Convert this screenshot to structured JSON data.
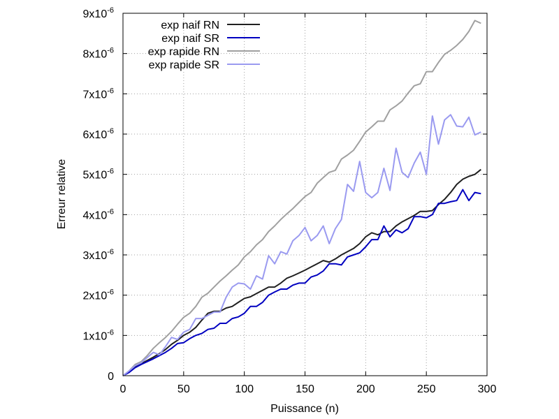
{
  "chart_data": {
    "type": "line",
    "title": "",
    "xlabel": "Puissance (n)",
    "ylabel": "Erreur relative",
    "xlim": [
      0,
      300
    ],
    "ylim": [
      0,
      9e-06
    ],
    "x_ticks": [
      0,
      50,
      100,
      150,
      200,
      250,
      300
    ],
    "y_ticks": [
      0,
      1e-06,
      2e-06,
      3e-06,
      4e-06,
      5e-06,
      6e-06,
      7e-06,
      8e-06,
      9e-06
    ],
    "x_tick_labels": [
      "0",
      "50",
      "100",
      "150",
      "200",
      "250",
      "300"
    ],
    "y_tick_labels": [
      {
        "mantissa": "0",
        "exponent": ""
      },
      {
        "mantissa": "1x10",
        "exponent": "-6"
      },
      {
        "mantissa": "2x10",
        "exponent": "-6"
      },
      {
        "mantissa": "3x10",
        "exponent": "-6"
      },
      {
        "mantissa": "4x10",
        "exponent": "-6"
      },
      {
        "mantissa": "5x10",
        "exponent": "-6"
      },
      {
        "mantissa": "6x10",
        "exponent": "-6"
      },
      {
        "mantissa": "7x10",
        "exponent": "-6"
      },
      {
        "mantissa": "8x10",
        "exponent": "-6"
      },
      {
        "mantissa": "9x10",
        "exponent": "-6"
      }
    ],
    "grid": true,
    "legend_position": "top-left",
    "series": [
      {
        "name": "exp naif RN",
        "color": "#202020",
        "points": [
          [
            0,
            0
          ],
          [
            5,
            1e-07
          ],
          [
            10,
            2.2e-07
          ],
          [
            15,
            3e-07
          ],
          [
            20,
            3.8e-07
          ],
          [
            25,
            4.6e-07
          ],
          [
            30,
            5.5e-07
          ],
          [
            35,
            6.5e-07
          ],
          [
            40,
            7.8e-07
          ],
          [
            45,
            8.8e-07
          ],
          [
            50,
            1e-06
          ],
          [
            55,
            1.08e-06
          ],
          [
            60,
            1.2e-06
          ],
          [
            65,
            1.38e-06
          ],
          [
            70,
            1.55e-06
          ],
          [
            75,
            1.6e-06
          ],
          [
            80,
            1.6e-06
          ],
          [
            85,
            1.68e-06
          ],
          [
            90,
            1.72e-06
          ],
          [
            95,
            1.82e-06
          ],
          [
            100,
            1.92e-06
          ],
          [
            105,
            1.96e-06
          ],
          [
            110,
            2.04e-06
          ],
          [
            115,
            2.12e-06
          ],
          [
            120,
            2.2e-06
          ],
          [
            125,
            2.2e-06
          ],
          [
            130,
            2.3e-06
          ],
          [
            135,
            2.42e-06
          ],
          [
            140,
            2.48e-06
          ],
          [
            145,
            2.55e-06
          ],
          [
            150,
            2.62e-06
          ],
          [
            155,
            2.7e-06
          ],
          [
            160,
            2.78e-06
          ],
          [
            165,
            2.86e-06
          ],
          [
            170,
            2.82e-06
          ],
          [
            175,
            2.9e-06
          ],
          [
            180,
            3e-06
          ],
          [
            185,
            3.08e-06
          ],
          [
            190,
            3.16e-06
          ],
          [
            195,
            3.28e-06
          ],
          [
            200,
            3.45e-06
          ],
          [
            205,
            3.55e-06
          ],
          [
            210,
            3.5e-06
          ],
          [
            215,
            3.58e-06
          ],
          [
            220,
            3.58e-06
          ],
          [
            225,
            3.72e-06
          ],
          [
            230,
            3.82e-06
          ],
          [
            235,
            3.9e-06
          ],
          [
            240,
            3.98e-06
          ],
          [
            245,
            4.08e-06
          ],
          [
            250,
            4.08e-06
          ],
          [
            255,
            4.1e-06
          ],
          [
            260,
            4.25e-06
          ],
          [
            265,
            4.38e-06
          ],
          [
            270,
            4.55e-06
          ],
          [
            275,
            4.75e-06
          ],
          [
            280,
            4.88e-06
          ],
          [
            285,
            4.95e-06
          ],
          [
            290,
            5e-06
          ],
          [
            295,
            5.12e-06
          ]
        ]
      },
      {
        "name": "exp naif SR",
        "color": "#0000c0",
        "points": [
          [
            0,
            0
          ],
          [
            5,
            8e-08
          ],
          [
            10,
            2e-07
          ],
          [
            15,
            2.8e-07
          ],
          [
            20,
            3.5e-07
          ],
          [
            25,
            4.2e-07
          ],
          [
            30,
            5e-07
          ],
          [
            35,
            5.8e-07
          ],
          [
            40,
            6.8e-07
          ],
          [
            45,
            8e-07
          ],
          [
            50,
            8.2e-07
          ],
          [
            55,
            9.2e-07
          ],
          [
            60,
            1e-06
          ],
          [
            65,
            1.05e-06
          ],
          [
            70,
            1.15e-06
          ],
          [
            75,
            1.18e-06
          ],
          [
            80,
            1.3e-06
          ],
          [
            85,
            1.3e-06
          ],
          [
            90,
            1.42e-06
          ],
          [
            95,
            1.46e-06
          ],
          [
            100,
            1.55e-06
          ],
          [
            105,
            1.72e-06
          ],
          [
            110,
            1.72e-06
          ],
          [
            115,
            1.82e-06
          ],
          [
            120,
            2e-06
          ],
          [
            125,
            2.08e-06
          ],
          [
            130,
            2.15e-06
          ],
          [
            135,
            2.15e-06
          ],
          [
            140,
            2.25e-06
          ],
          [
            145,
            2.3e-06
          ],
          [
            150,
            2.3e-06
          ],
          [
            155,
            2.45e-06
          ],
          [
            160,
            2.5e-06
          ],
          [
            165,
            2.6e-06
          ],
          [
            170,
            2.78e-06
          ],
          [
            175,
            2.78e-06
          ],
          [
            180,
            2.75e-06
          ],
          [
            185,
            2.95e-06
          ],
          [
            190,
            3e-06
          ],
          [
            195,
            3.05e-06
          ],
          [
            200,
            3.2e-06
          ],
          [
            205,
            3.38e-06
          ],
          [
            210,
            3.38e-06
          ],
          [
            215,
            3.72e-06
          ],
          [
            220,
            3.45e-06
          ],
          [
            225,
            3.62e-06
          ],
          [
            230,
            3.55e-06
          ],
          [
            235,
            3.65e-06
          ],
          [
            240,
            3.95e-06
          ],
          [
            245,
            3.95e-06
          ],
          [
            250,
            3.92e-06
          ],
          [
            255,
            4e-06
          ],
          [
            260,
            4.28e-06
          ],
          [
            265,
            4.28e-06
          ],
          [
            270,
            4.32e-06
          ],
          [
            275,
            4.35e-06
          ],
          [
            280,
            4.62e-06
          ],
          [
            285,
            4.35e-06
          ],
          [
            290,
            4.55e-06
          ],
          [
            295,
            4.52e-06
          ]
        ]
      },
      {
        "name": "exp rapide RN",
        "color": "#a0a0a0",
        "points": [
          [
            0,
            0
          ],
          [
            5,
            1.2e-07
          ],
          [
            10,
            2.8e-07
          ],
          [
            15,
            3.5e-07
          ],
          [
            20,
            5e-07
          ],
          [
            25,
            6.8e-07
          ],
          [
            30,
            8.2e-07
          ],
          [
            35,
            9.5e-07
          ],
          [
            40,
            1.1e-06
          ],
          [
            45,
            1.28e-06
          ],
          [
            50,
            1.45e-06
          ],
          [
            55,
            1.55e-06
          ],
          [
            60,
            1.72e-06
          ],
          [
            65,
            1.95e-06
          ],
          [
            70,
            2.05e-06
          ],
          [
            75,
            2.2e-06
          ],
          [
            80,
            2.35e-06
          ],
          [
            85,
            2.48e-06
          ],
          [
            90,
            2.62e-06
          ],
          [
            95,
            2.75e-06
          ],
          [
            100,
            2.95e-06
          ],
          [
            105,
            3.08e-06
          ],
          [
            110,
            3.25e-06
          ],
          [
            115,
            3.38e-06
          ],
          [
            120,
            3.58e-06
          ],
          [
            125,
            3.72e-06
          ],
          [
            130,
            3.88e-06
          ],
          [
            135,
            4.02e-06
          ],
          [
            140,
            4.15e-06
          ],
          [
            145,
            4.3e-06
          ],
          [
            150,
            4.45e-06
          ],
          [
            155,
            4.55e-06
          ],
          [
            160,
            4.78e-06
          ],
          [
            165,
            4.92e-06
          ],
          [
            170,
            5.05e-06
          ],
          [
            175,
            5.1e-06
          ],
          [
            180,
            5.38e-06
          ],
          [
            185,
            5.48e-06
          ],
          [
            190,
            5.6e-06
          ],
          [
            195,
            5.82e-06
          ],
          [
            200,
            6.05e-06
          ],
          [
            205,
            6.18e-06
          ],
          [
            210,
            6.32e-06
          ],
          [
            215,
            6.32e-06
          ],
          [
            220,
            6.6e-06
          ],
          [
            225,
            6.7e-06
          ],
          [
            230,
            6.82e-06
          ],
          [
            235,
            7.02e-06
          ],
          [
            240,
            7.2e-06
          ],
          [
            245,
            7.25e-06
          ],
          [
            250,
            7.55e-06
          ],
          [
            255,
            7.55e-06
          ],
          [
            260,
            7.78e-06
          ],
          [
            265,
            7.98e-06
          ],
          [
            270,
            8.08e-06
          ],
          [
            275,
            8.2e-06
          ],
          [
            280,
            8.35e-06
          ],
          [
            285,
            8.55e-06
          ],
          [
            290,
            8.82e-06
          ],
          [
            295,
            8.75e-06
          ]
        ]
      },
      {
        "name": "exp rapide SR",
        "color": "#9a9af0",
        "points": [
          [
            0,
            0
          ],
          [
            5,
            1.2e-07
          ],
          [
            10,
            2.5e-07
          ],
          [
            15,
            3.2e-07
          ],
          [
            20,
            4.5e-07
          ],
          [
            25,
            5.8e-07
          ],
          [
            30,
            5.2e-07
          ],
          [
            35,
            7.2e-07
          ],
          [
            40,
            9.5e-07
          ],
          [
            45,
            9e-07
          ],
          [
            50,
            1.08e-06
          ],
          [
            55,
            1.15e-06
          ],
          [
            60,
            1.42e-06
          ],
          [
            65,
            1.42e-06
          ],
          [
            70,
            1.5e-06
          ],
          [
            75,
            1.58e-06
          ],
          [
            80,
            1.58e-06
          ],
          [
            85,
            1.95e-06
          ],
          [
            90,
            2.2e-06
          ],
          [
            95,
            2.3e-06
          ],
          [
            100,
            2.28e-06
          ],
          [
            105,
            2.15e-06
          ],
          [
            110,
            2.48e-06
          ],
          [
            115,
            2.4e-06
          ],
          [
            120,
            2.98e-06
          ],
          [
            125,
            2.78e-06
          ],
          [
            130,
            3.08e-06
          ],
          [
            135,
            3.02e-06
          ],
          [
            140,
            3.35e-06
          ],
          [
            145,
            3.48e-06
          ],
          [
            150,
            3.68e-06
          ],
          [
            155,
            3.35e-06
          ],
          [
            160,
            3.48e-06
          ],
          [
            165,
            3.72e-06
          ],
          [
            170,
            3.28e-06
          ],
          [
            175,
            3.65e-06
          ],
          [
            180,
            3.88e-06
          ],
          [
            185,
            4.75e-06
          ],
          [
            190,
            4.58e-06
          ],
          [
            195,
            5.32e-06
          ],
          [
            200,
            4.55e-06
          ],
          [
            205,
            4.42e-06
          ],
          [
            210,
            4.55e-06
          ],
          [
            215,
            5.15e-06
          ],
          [
            220,
            4.6e-06
          ],
          [
            225,
            5.65e-06
          ],
          [
            230,
            5.05e-06
          ],
          [
            235,
            4.92e-06
          ],
          [
            240,
            5.28e-06
          ],
          [
            245,
            5.55e-06
          ],
          [
            250,
            5e-06
          ],
          [
            255,
            6.45e-06
          ],
          [
            260,
            5.75e-06
          ],
          [
            265,
            6.35e-06
          ],
          [
            270,
            6.48e-06
          ],
          [
            275,
            6.2e-06
          ],
          [
            280,
            6.18e-06
          ],
          [
            285,
            6.42e-06
          ],
          [
            290,
            5.98e-06
          ],
          [
            295,
            6.05e-06
          ]
        ]
      }
    ]
  }
}
